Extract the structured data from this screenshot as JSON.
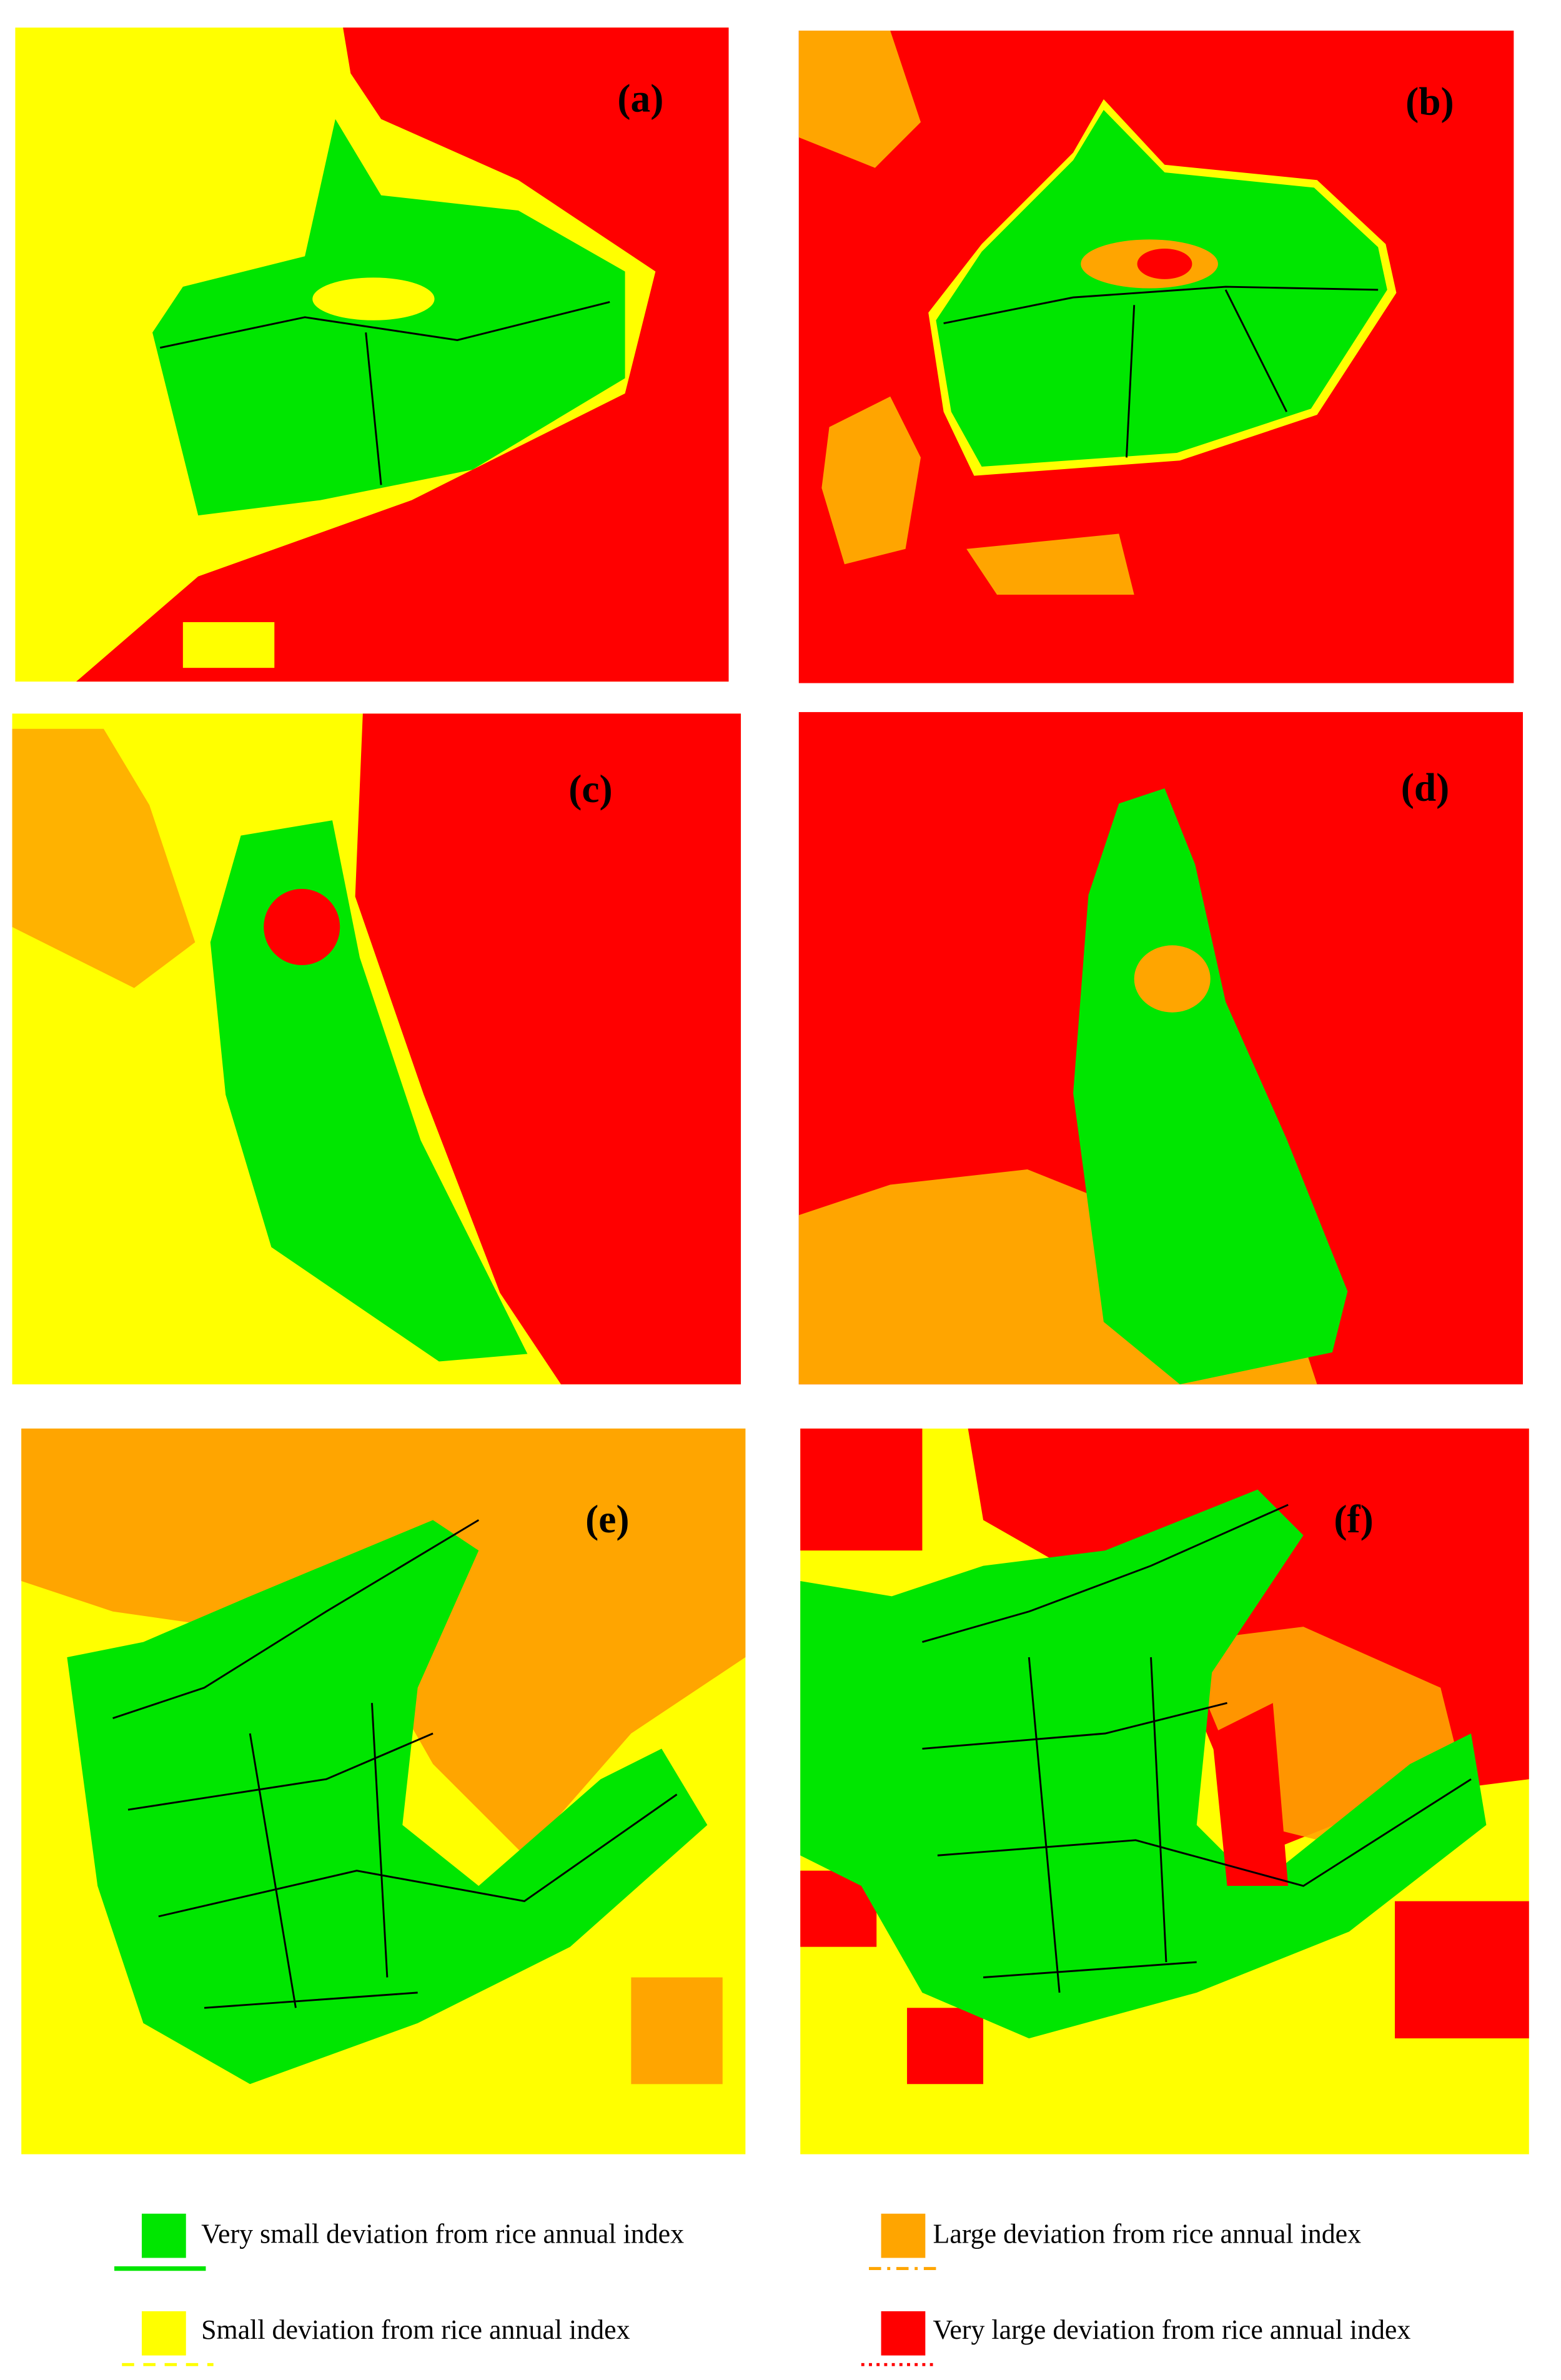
{
  "panels": [
    {
      "label": "(a)"
    },
    {
      "label": "(b)"
    },
    {
      "label": "(c)"
    },
    {
      "label": "(d)"
    },
    {
      "label": "(e)"
    },
    {
      "label": "(f)"
    }
  ],
  "legend": [
    {
      "label": "Very small deviation from rice annual index",
      "color": "#00e600"
    },
    {
      "label": "Large deviation from rice annual index",
      "color": "#ffa500"
    },
    {
      "label": "Small deviation from rice annual index",
      "color": "#ffff00"
    },
    {
      "label": "Very large deviation from rice annual index",
      "color": "#ff0000"
    }
  ]
}
